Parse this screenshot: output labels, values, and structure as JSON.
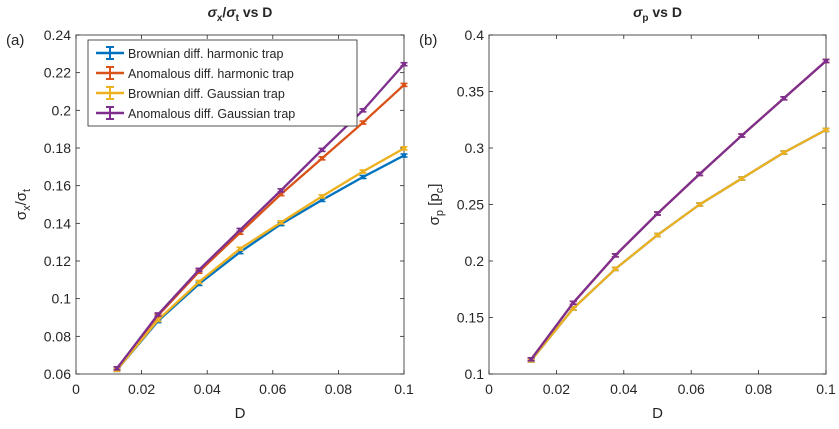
{
  "chart_data": [
    {
      "type": "line",
      "panel_label": "(a)",
      "title": "σx/σt vs D",
      "title_parts": {
        "sym1": "σ",
        "sub1": "x",
        "slash": "/",
        "sym2": "σ",
        "sub2": "t",
        "rest": " vs D"
      },
      "xlabel": "D",
      "ylabel": "σx/σt",
      "ylabel_parts": {
        "sym1": "σ",
        "sub1": "x",
        "slash": "/",
        "sym2": "σ",
        "sub2": "t"
      },
      "xlim": [
        0,
        0.1
      ],
      "ylim": [
        0.06,
        0.24
      ],
      "xticks": [
        0,
        0.02,
        0.04,
        0.06,
        0.08,
        0.1
      ],
      "xtick_labels": [
        "0",
        "0.02",
        "0.04",
        "0.06",
        "0.08",
        "0.1"
      ],
      "yticks": [
        0.06,
        0.08,
        0.1,
        0.12,
        0.14,
        0.16,
        0.18,
        0.2,
        0.22,
        0.24
      ],
      "ytick_labels": [
        "0.06",
        "0.08",
        "0.1",
        "0.12",
        "0.14",
        "0.16",
        "0.18",
        "0.2",
        "0.22",
        "0.24"
      ],
      "grid": false,
      "legend": "top-left",
      "x": [
        0.0125,
        0.025,
        0.0375,
        0.05,
        0.0625,
        0.075,
        0.0875,
        0.1
      ],
      "series": [
        {
          "name": "Brownian diff. harmonic trap",
          "color": "#0072BD",
          "values": [
            0.0622,
            0.0881,
            0.1078,
            0.1247,
            0.1396,
            0.1524,
            0.1646,
            0.176
          ]
        },
        {
          "name": "Anomalous diff. harmonic trap",
          "color": "#D95319",
          "values": [
            0.063,
            0.091,
            0.1143,
            0.135,
            0.1555,
            0.1745,
            0.1935,
            0.2135
          ]
        },
        {
          "name": "Brownian diff. Gaussian trap",
          "color": "#EDB120",
          "values": [
            0.0622,
            0.0887,
            0.1089,
            0.1265,
            0.1405,
            0.1543,
            0.1675,
            0.1798
          ]
        },
        {
          "name": "Anomalous diff. Gaussian trap",
          "color": "#7E2F8E",
          "values": [
            0.063,
            0.0916,
            0.1153,
            0.1365,
            0.1575,
            0.179,
            0.2,
            0.2245
          ]
        }
      ]
    },
    {
      "type": "line",
      "panel_label": "(b)",
      "title": "σp vs D",
      "title_parts": {
        "sym1": "σ",
        "sub1": "p",
        "rest": " vs D"
      },
      "xlabel": "D",
      "ylabel": "σp [pc]",
      "ylabel_parts": {
        "sym1": "σ",
        "sub1": "p",
        "mid": " [p",
        "sub2": "c",
        "end": "]"
      },
      "xlim": [
        0,
        0.1
      ],
      "ylim": [
        0.1,
        0.4
      ],
      "xticks": [
        0,
        0.02,
        0.04,
        0.06,
        0.08,
        0.1
      ],
      "xtick_labels": [
        "0",
        "0.02",
        "0.04",
        "0.06",
        "0.08",
        "0.1"
      ],
      "yticks": [
        0.1,
        0.15,
        0.2,
        0.25,
        0.3,
        0.35,
        0.4
      ],
      "ytick_labels": [
        "0.1",
        "0.15",
        "0.2",
        "0.25",
        "0.3",
        "0.35",
        "0.4"
      ],
      "grid": false,
      "legend": "none",
      "x": [
        0.0125,
        0.025,
        0.0375,
        0.05,
        0.0625,
        0.075,
        0.0875,
        0.1
      ],
      "series": [
        {
          "color": "#0072BD",
          "values": [
            0.112,
            0.158,
            0.193,
            0.223,
            0.25,
            0.273,
            0.296,
            0.316
          ]
        },
        {
          "color": "#D95319",
          "values": [
            0.113,
            0.163,
            0.205,
            0.242,
            0.277,
            0.311,
            0.344,
            0.377
          ]
        },
        {
          "color": "#EDB120",
          "values": [
            0.112,
            0.158,
            0.193,
            0.223,
            0.25,
            0.273,
            0.296,
            0.316
          ]
        },
        {
          "color": "#7E2F8E",
          "values": [
            0.113,
            0.163,
            0.205,
            0.242,
            0.277,
            0.311,
            0.344,
            0.377
          ]
        }
      ]
    }
  ]
}
